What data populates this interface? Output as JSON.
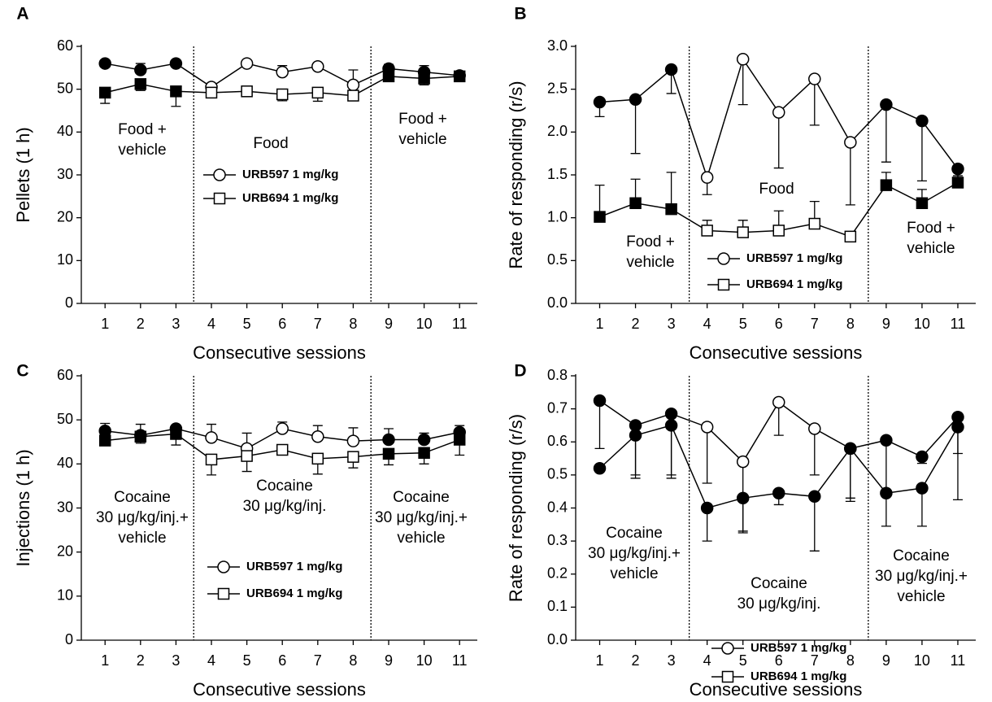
{
  "chart_data": [
    {
      "type": "line",
      "panel_label": "A",
      "ylabel": "Pellets (1 h)",
      "xlabel": "Consecutive sessions",
      "x": [
        1,
        2,
        3,
        4,
        5,
        6,
        7,
        8,
        9,
        10,
        11
      ],
      "xlim": [
        0.33,
        11.5
      ],
      "xticks": [
        1,
        2,
        3,
        4,
        5,
        6,
        7,
        8,
        9,
        10,
        11
      ],
      "ylim": [
        0,
        60
      ],
      "yticks": [
        0,
        10,
        20,
        30,
        40,
        50,
        60
      ],
      "vlines": [
        3.5,
        8.5
      ],
      "series": [
        {
          "name": "URB597 1 mg/kg",
          "marker": "circle",
          "legend_marker": "circle",
          "color": "#000000",
          "open_between_vlines": true,
          "error_direction": "up",
          "values": [
            56,
            54.5,
            56,
            50.5,
            56,
            54,
            55.3,
            51,
            54.8,
            54,
            53.2
          ],
          "errors": [
            0.5,
            1.5,
            0.5,
            0.8,
            0.5,
            1.5,
            0.5,
            3.5,
            1,
            1.5,
            0.5
          ]
        },
        {
          "name": "URB694 1 mg/kg",
          "marker": "square",
          "legend_marker": "square",
          "color": "#000000",
          "open_between_vlines": true,
          "error_direction": "down",
          "values": [
            49.2,
            51.2,
            49.5,
            49.2,
            49.5,
            48.8,
            49.2,
            48.5,
            53,
            52.5,
            53
          ],
          "errors": [
            2.5,
            1.5,
            3.5,
            1,
            1,
            1.5,
            2,
            0.8,
            1,
            1.5,
            0.8
          ]
        }
      ],
      "annotations": [
        {
          "lines": [
            "Food +",
            "vehicle"
          ]
        },
        {
          "lines": [
            "Food"
          ]
        },
        {
          "lines": [
            "Food +",
            "vehicle"
          ]
        }
      ]
    },
    {
      "type": "line",
      "panel_label": "B",
      "ylabel": "Rate of responding (r/s)",
      "xlabel": "Consecutive sessions",
      "x": [
        1,
        2,
        3,
        4,
        5,
        6,
        7,
        8,
        9,
        10,
        11
      ],
      "xlim": [
        0.33,
        11.5
      ],
      "xticks": [
        1,
        2,
        3,
        4,
        5,
        6,
        7,
        8,
        9,
        10,
        11
      ],
      "ylim": [
        0,
        3
      ],
      "yticks": [
        {
          "value": 0,
          "label": "0.0"
        },
        0.5,
        {
          "value": 1,
          "label": "1.0"
        },
        1.5,
        {
          "value": 2,
          "label": "2.0"
        },
        2.5,
        {
          "value": 3,
          "label": "3.0"
        }
      ],
      "vlines": [
        3.5,
        8.5
      ],
      "series": [
        {
          "name": "URB597 1 mg/kg",
          "marker": "circle",
          "legend_marker": "circle",
          "color": "#000000",
          "open_between_vlines": true,
          "error_direction": "down",
          "values": [
            2.35,
            2.38,
            2.73,
            1.47,
            2.85,
            2.23,
            2.62,
            1.88,
            2.32,
            2.13,
            1.57
          ],
          "errors": [
            0.17,
            0.63,
            0.28,
            0.2,
            0.53,
            0.65,
            0.54,
            0.73,
            0.67,
            0.7,
            0.15
          ]
        },
        {
          "name": "URB694 1 mg/kg",
          "marker": "square",
          "legend_marker": "square",
          "color": "#000000",
          "open_between_vlines": true,
          "error_direction": "up",
          "values": [
            1.01,
            1.17,
            1.1,
            0.85,
            0.83,
            0.85,
            0.93,
            0.78,
            1.38,
            1.17,
            1.41
          ],
          "errors": [
            0.37,
            0.28,
            0.43,
            0.12,
            0.14,
            0.23,
            0.26,
            0.03,
            0.15,
            0.16,
            0.08
          ]
        }
      ],
      "annotations": [
        {
          "lines": [
            "Food +",
            "vehicle"
          ]
        },
        {
          "lines": [
            "Food"
          ]
        },
        {
          "lines": [
            "Food +",
            "vehicle"
          ]
        }
      ]
    },
    {
      "type": "line",
      "panel_label": "C",
      "ylabel": "Injections (1 h)",
      "xlabel": "Consecutive sessions",
      "x": [
        1,
        2,
        3,
        4,
        5,
        6,
        7,
        8,
        9,
        10,
        11
      ],
      "xlim": [
        0.33,
        11.5
      ],
      "xticks": [
        1,
        2,
        3,
        4,
        5,
        6,
        7,
        8,
        9,
        10,
        11
      ],
      "ylim": [
        0,
        60
      ],
      "yticks": [
        0,
        10,
        20,
        30,
        40,
        50,
        60
      ],
      "vlines": [
        3.5,
        8.5
      ],
      "series": [
        {
          "name": "URB597 1 mg/kg",
          "marker": "circle",
          "legend_marker": "circle",
          "color": "#000000",
          "open_between_vlines": true,
          "error_direction": "up",
          "values": [
            47.5,
            46.5,
            48,
            46,
            43.5,
            48,
            46.2,
            45.2,
            45.5,
            45.5,
            47.2
          ],
          "errors": [
            1.7,
            2.5,
            0.5,
            3,
            3.5,
            1.5,
            2.5,
            3,
            2.5,
            1.5,
            1.5
          ]
        },
        {
          "name": "URB694 1 mg/kg",
          "marker": "square",
          "legend_marker": "square",
          "color": "#000000",
          "open_between_vlines": true,
          "error_direction": "down",
          "values": [
            45.3,
            46.2,
            46.8,
            41,
            41.8,
            43.2,
            41.2,
            41.6,
            42.3,
            42.5,
            45.5
          ],
          "errors": [
            1,
            1.5,
            2.5,
            3.5,
            3.5,
            1,
            3.5,
            2.5,
            2.5,
            2.5,
            3.5
          ]
        }
      ],
      "annotations": [
        {
          "lines": [
            "Cocaine",
            "30 μg/kg/inj.+",
            "vehicle"
          ]
        },
        {
          "lines": [
            "Cocaine",
            "30 μg/kg/inj."
          ]
        },
        {
          "lines": [
            "Cocaine",
            "30 μg/kg/inj.+",
            "vehicle"
          ]
        }
      ]
    },
    {
      "type": "line",
      "panel_label": "D",
      "ylabel": "Rate of responding (r/s)",
      "xlabel": "Consecutive sessions",
      "x": [
        1,
        2,
        3,
        4,
        5,
        6,
        7,
        8,
        9,
        10,
        11
      ],
      "xlim": [
        0.33,
        11.5
      ],
      "xticks": [
        1,
        2,
        3,
        4,
        5,
        6,
        7,
        8,
        9,
        10,
        11
      ],
      "ylim": [
        0,
        0.8
      ],
      "yticks": [
        {
          "value": 0,
          "label": "0.0"
        },
        0.1,
        0.2,
        0.3,
        0.4,
        0.5,
        0.6,
        0.7,
        0.8
      ],
      "vlines": [
        3.5,
        8.5
      ],
      "series": [
        {
          "name": "URB597 1 mg/kg",
          "marker": "circle",
          "legend_marker": "circle",
          "color": "#000000",
          "open_between_vlines": true,
          "error_direction": "down",
          "values": [
            0.725,
            0.65,
            0.685,
            0.645,
            0.54,
            0.72,
            0.64,
            0.58,
            0.605,
            0.555,
            0.675
          ],
          "errors": [
            0.145,
            0.16,
            0.195,
            0.17,
            0.215,
            0.1,
            0.14,
            0.16,
            0.16,
            0.02,
            0.25
          ]
        },
        {
          "name": "URB694 1 mg/kg",
          "marker": "circle",
          "legend_marker": "square",
          "color": "#000000",
          "open_between_vlines": false,
          "error_direction": "down",
          "values": [
            0.52,
            0.62,
            0.65,
            0.4,
            0.43,
            0.445,
            0.435,
            0.58,
            0.445,
            0.46,
            0.645
          ],
          "errors": [
            0.01,
            0.12,
            0.15,
            0.1,
            0.1,
            0.035,
            0.165,
            0.15,
            0.1,
            0.115,
            0.08
          ]
        }
      ],
      "annotations": [
        {
          "lines": [
            "Cocaine",
            "30 μg/kg/inj.+",
            "vehicle"
          ]
        },
        {
          "lines": [
            "Cocaine",
            "30 μg/kg/inj."
          ]
        },
        {
          "lines": [
            "Cocaine",
            "30 μg/kg/inj.+",
            "vehicle"
          ]
        }
      ]
    }
  ]
}
